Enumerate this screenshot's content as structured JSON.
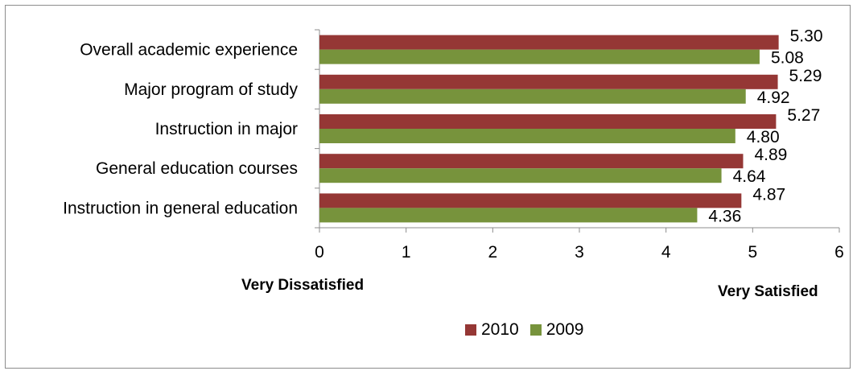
{
  "chart_data": {
    "type": "bar",
    "orientation": "horizontal",
    "categories": [
      "Overall academic experience",
      "Major program of study",
      "Instruction in major",
      "General education courses",
      "Instruction in general education"
    ],
    "series": [
      {
        "name": "2010",
        "color": "#953735",
        "values": [
          5.3,
          5.29,
          5.27,
          4.89,
          4.87
        ],
        "labels": [
          "5.30",
          "5.29",
          "5.27",
          "4.89",
          "4.87"
        ]
      },
      {
        "name": "2009",
        "color": "#77933c",
        "values": [
          5.08,
          4.92,
          4.8,
          4.64,
          4.36
        ],
        "labels": [
          "5.08",
          "4.92",
          "4.80",
          "4.64",
          "4.36"
        ]
      }
    ],
    "xlim": [
      0,
      6
    ],
    "xticks": [
      "0",
      "1",
      "2",
      "3",
      "4",
      "5",
      "6"
    ],
    "xlabel_left": "Very Dissatisfied",
    "xlabel_right": "Very Satisfied",
    "legend_position": "bottom",
    "grid": false
  }
}
